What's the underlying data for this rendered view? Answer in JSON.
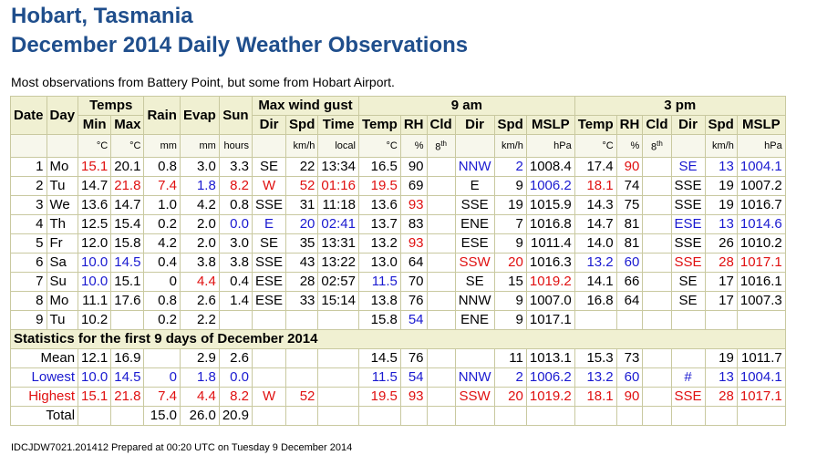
{
  "title1": "Hobart, Tasmania",
  "title2": "December 2014 Daily Weather Observations",
  "intro": "Most observations from Battery Point, but some from Hobart Airport.",
  "headers": {
    "date": "Date",
    "day": "Day",
    "temps": "Temps",
    "rain": "Rain",
    "evap": "Evap",
    "sun": "Sun",
    "maxwind": "Max wind gust",
    "am9": "9 am",
    "pm3": "3 pm",
    "min": "Min",
    "max": "Max",
    "dir": "Dir",
    "spd": "Spd",
    "time": "Time",
    "temp": "Temp",
    "rh": "RH",
    "cld": "Cld",
    "mslp": "MSLP"
  },
  "units": {
    "c": "°C",
    "mm": "mm",
    "hours": "hours",
    "kmh": "km/h",
    "local": "local",
    "pct": "%",
    "oct": "8",
    "oct_sup": "th",
    "hpa": "hPa"
  },
  "rows": [
    {
      "date": "1",
      "day": "Mo",
      "min": "15.1",
      "max": "20.1",
      "rain": "0.8",
      "evap": "3.0",
      "sun": "3.3",
      "gdir": "SE",
      "gspd": "22",
      "gtime": "13:34",
      "t9": "16.5",
      "rh9": "90",
      "cld9": "",
      "dir9": "NNW",
      "spd9": "2",
      "mslp9": "1008.4",
      "t3": "17.4",
      "rh3": "90",
      "cld3": "",
      "dir3": "SE",
      "spd3": "13",
      "mslp3": "1004.1"
    },
    {
      "date": "2",
      "day": "Tu",
      "min": "14.7",
      "max": "21.8",
      "rain": "7.4",
      "evap": "1.8",
      "sun": "8.2",
      "gdir": "W",
      "gspd": "52",
      "gtime": "01:16",
      "t9": "19.5",
      "rh9": "69",
      "cld9": "",
      "dir9": "E",
      "spd9": "9",
      "mslp9": "1006.2",
      "t3": "18.1",
      "rh3": "74",
      "cld3": "",
      "dir3": "SSE",
      "spd3": "19",
      "mslp3": "1007.2"
    },
    {
      "date": "3",
      "day": "We",
      "min": "13.6",
      "max": "14.7",
      "rain": "1.0",
      "evap": "4.2",
      "sun": "0.8",
      "gdir": "SSE",
      "gspd": "31",
      "gtime": "11:18",
      "t9": "13.6",
      "rh9": "93",
      "cld9": "",
      "dir9": "SSE",
      "spd9": "19",
      "mslp9": "1015.9",
      "t3": "14.3",
      "rh3": "75",
      "cld3": "",
      "dir3": "SSE",
      "spd3": "19",
      "mslp3": "1016.7"
    },
    {
      "date": "4",
      "day": "Th",
      "min": "12.5",
      "max": "15.4",
      "rain": "0.2",
      "evap": "2.0",
      "sun": "0.0",
      "gdir": "E",
      "gspd": "20",
      "gtime": "02:41",
      "t9": "13.7",
      "rh9": "83",
      "cld9": "",
      "dir9": "ENE",
      "spd9": "7",
      "mslp9": "1016.8",
      "t3": "14.7",
      "rh3": "81",
      "cld3": "",
      "dir3": "ESE",
      "spd3": "13",
      "mslp3": "1014.6"
    },
    {
      "date": "5",
      "day": "Fr",
      "min": "12.0",
      "max": "15.8",
      "rain": "4.2",
      "evap": "2.0",
      "sun": "3.0",
      "gdir": "SE",
      "gspd": "35",
      "gtime": "13:31",
      "t9": "13.2",
      "rh9": "93",
      "cld9": "",
      "dir9": "ESE",
      "spd9": "9",
      "mslp9": "1011.4",
      "t3": "14.0",
      "rh3": "81",
      "cld3": "",
      "dir3": "SSE",
      "spd3": "26",
      "mslp3": "1010.2"
    },
    {
      "date": "6",
      "day": "Sa",
      "min": "10.0",
      "max": "14.5",
      "rain": "0.4",
      "evap": "3.8",
      "sun": "3.8",
      "gdir": "SSE",
      "gspd": "43",
      "gtime": "13:22",
      "t9": "13.0",
      "rh9": "64",
      "cld9": "",
      "dir9": "SSW",
      "spd9": "20",
      "mslp9": "1016.3",
      "t3": "13.2",
      "rh3": "60",
      "cld3": "",
      "dir3": "SSE",
      "spd3": "28",
      "mslp3": "1017.1"
    },
    {
      "date": "7",
      "day": "Su",
      "min": "10.0",
      "max": "15.1",
      "rain": "0",
      "evap": "4.4",
      "sun": "0.4",
      "gdir": "ESE",
      "gspd": "28",
      "gtime": "02:57",
      "t9": "11.5",
      "rh9": "70",
      "cld9": "",
      "dir9": "SE",
      "spd9": "15",
      "mslp9": "1019.2",
      "t3": "14.1",
      "rh3": "66",
      "cld3": "",
      "dir3": "SE",
      "spd3": "17",
      "mslp3": "1016.1"
    },
    {
      "date": "8",
      "day": "Mo",
      "min": "11.1",
      "max": "17.6",
      "rain": "0.8",
      "evap": "2.6",
      "sun": "1.4",
      "gdir": "ESE",
      "gspd": "33",
      "gtime": "15:14",
      "t9": "13.8",
      "rh9": "76",
      "cld9": "",
      "dir9": "NNW",
      "spd9": "9",
      "mslp9": "1007.0",
      "t3": "16.8",
      "rh3": "64",
      "cld3": "",
      "dir3": "SE",
      "spd3": "17",
      "mslp3": "1007.3"
    },
    {
      "date": "9",
      "day": "Tu",
      "min": "10.2",
      "max": "",
      "rain": "0.2",
      "evap": "2.2",
      "sun": "",
      "gdir": "",
      "gspd": "",
      "gtime": "",
      "t9": "15.8",
      "rh9": "54",
      "cld9": "",
      "dir9": "ENE",
      "spd9": "9",
      "mslp9": "1017.1",
      "t3": "",
      "rh3": "",
      "cld3": "",
      "dir3": "",
      "spd3": "",
      "mslp3": ""
    }
  ],
  "stats_title": "Statistics for the first 9 days of December 2014",
  "stats": [
    {
      "label": "Mean",
      "min": "12.1",
      "max": "16.9",
      "rain": "",
      "evap": "2.9",
      "sun": "2.6",
      "gdir": "",
      "gspd": "",
      "gtime": "",
      "t9": "14.5",
      "rh9": "76",
      "cld9": "",
      "dir9": "",
      "spd9": "11",
      "mslp9": "1013.1",
      "t3": "15.3",
      "rh3": "73",
      "cld3": "",
      "dir3": "",
      "spd3": "19",
      "mslp3": "1011.7"
    },
    {
      "label": "Lowest",
      "min": "10.0",
      "max": "14.5",
      "rain": "0",
      "evap": "1.8",
      "sun": "0.0",
      "gdir": "",
      "gspd": "",
      "gtime": "",
      "t9": "11.5",
      "rh9": "54",
      "cld9": "",
      "dir9": "NNW",
      "spd9": "2",
      "mslp9": "1006.2",
      "t3": "13.2",
      "rh3": "60",
      "cld3": "",
      "dir3": "#",
      "spd3": "13",
      "mslp3": "1004.1"
    },
    {
      "label": "Highest",
      "min": "15.1",
      "max": "21.8",
      "rain": "7.4",
      "evap": "4.4",
      "sun": "8.2",
      "gdir": "W",
      "gspd": "52",
      "gtime": "",
      "t9": "19.5",
      "rh9": "93",
      "cld9": "",
      "dir9": "SSW",
      "spd9": "20",
      "mslp9": "1019.2",
      "t3": "18.1",
      "rh3": "90",
      "cld3": "",
      "dir3": "SSE",
      "spd3": "28",
      "mslp3": "1017.1"
    },
    {
      "label": "Total",
      "min": "",
      "max": "",
      "rain": "15.0",
      "evap": "26.0",
      "sun": "20.9",
      "gdir": "",
      "gspd": "",
      "gtime": "",
      "t9": "",
      "rh9": "",
      "cld9": "",
      "dir9": "",
      "spd9": "",
      "mslp9": "",
      "t3": "",
      "rh3": "",
      "cld3": "",
      "dir3": "",
      "spd3": "",
      "mslp3": ""
    }
  ],
  "footer": "IDCJDW7021.201412   Prepared at 00:20 UTC on Tuesday 9 December 2014",
  "cutoff_text": "Observations",
  "colors": {
    "title": "#1f4e8c",
    "header_bg": "#f0f0d2",
    "border": "#c9c9a0",
    "red": "#e01010",
    "blue": "#1a1ad0"
  }
}
